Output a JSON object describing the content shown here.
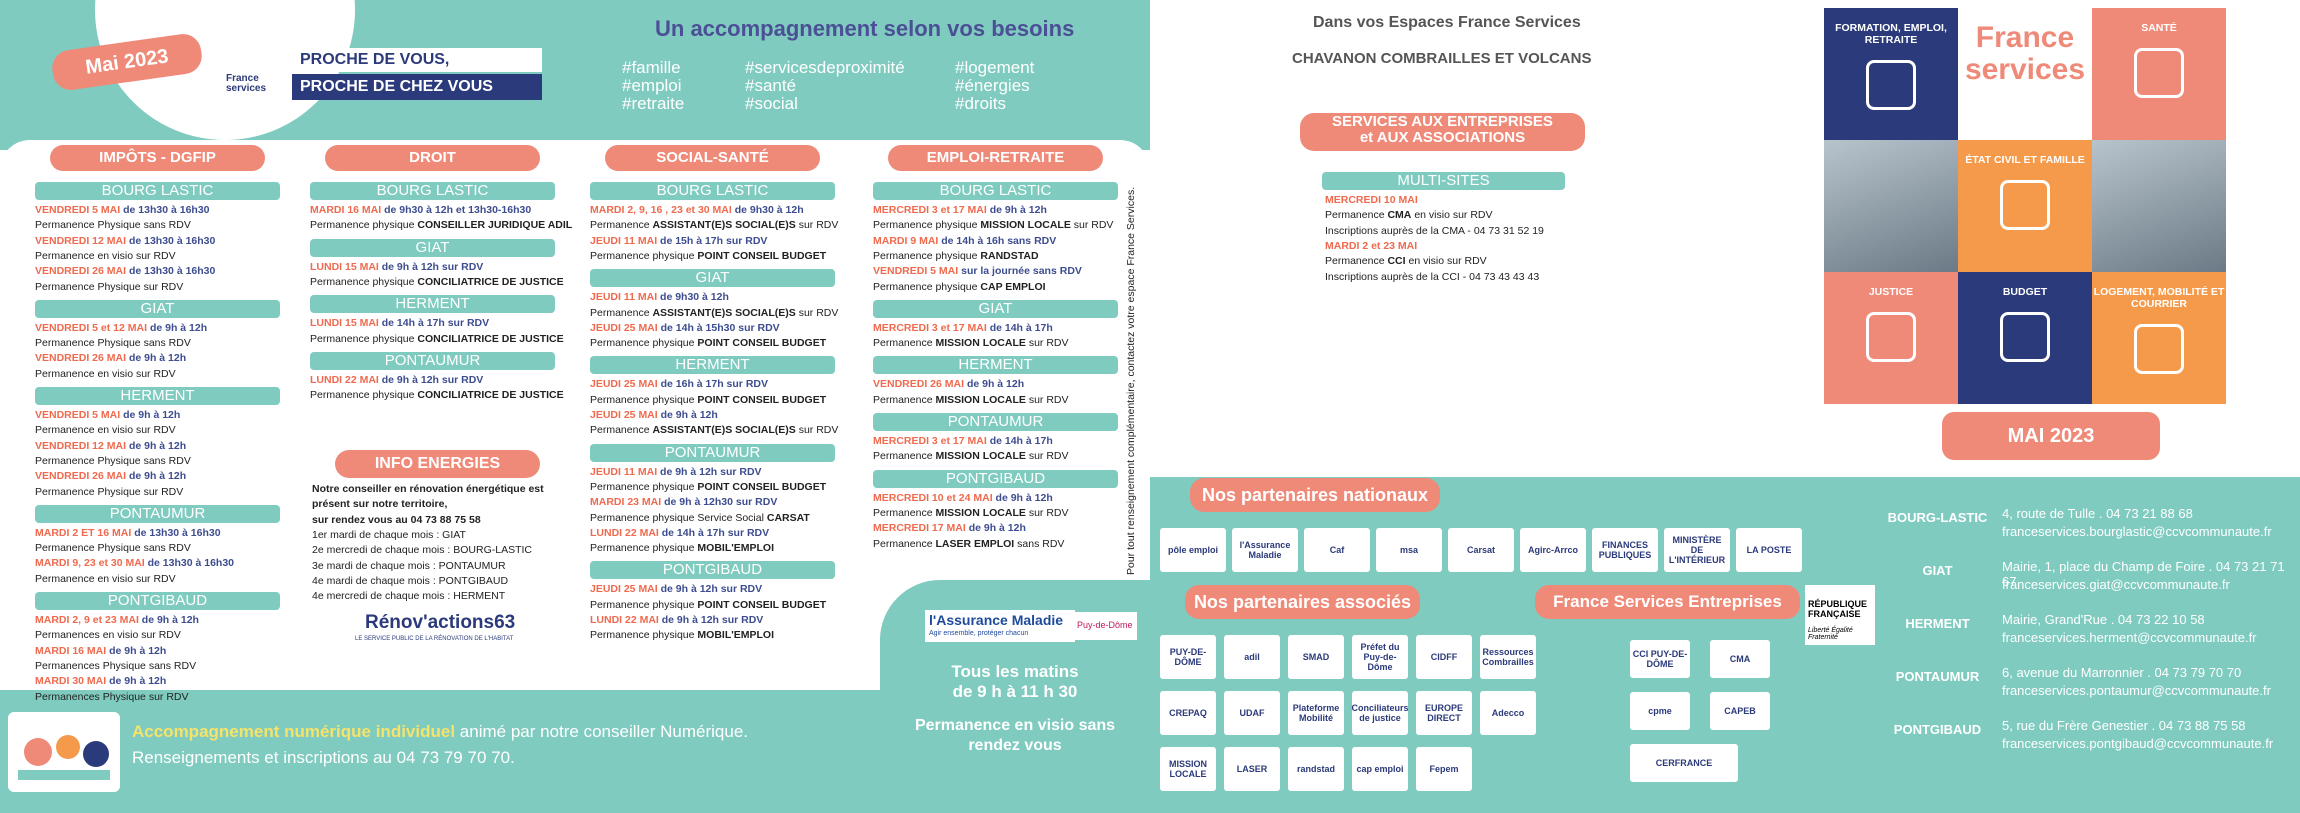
{
  "header": {
    "month_tab": "Mai 2023",
    "logo": "France services",
    "slogan": [
      "PROCHE DE VOUS,",
      "PROCHE DE CHEZ VOUS"
    ],
    "title": "Un accompagnement selon vos besoins",
    "hashtags": [
      [
        "#famille",
        "#emploi",
        "#retraite"
      ],
      [
        "#servicesdeproximité",
        "#santé",
        "#social"
      ],
      [
        "#logement",
        "#énergies",
        "#droits"
      ]
    ]
  },
  "columns": [
    {
      "title": "IMPÔTS - DGFIP",
      "sections": [
        {
          "place": "BOURG LASTIC",
          "lines": [
            {
              "day": "VENDREDI 5 MAI",
              "time": "de 13h30 à 16h30"
            },
            {
              "text": "Permanence Physique sans RDV"
            },
            {
              "day": "VENDREDI 12 MAI",
              "time": "de 13h30 à 16h30"
            },
            {
              "text": "Permanence en visio sur RDV"
            },
            {
              "day": "VENDREDI 26 MAI",
              "time": "de 13h30 à 16h30"
            },
            {
              "text": "Permanence Physique sur RDV"
            }
          ]
        },
        {
          "place": "GIAT",
          "lines": [
            {
              "day": "VENDREDI 5 et 12 MAI",
              "time": "de 9h à 12h"
            },
            {
              "text": "Permanence Physique sans RDV"
            },
            {
              "day": "VENDREDI 26 MAI",
              "time": "de 9h à 12h"
            },
            {
              "text": "Permanence en visio sur RDV"
            }
          ]
        },
        {
          "place": "HERMENT",
          "lines": [
            {
              "day": "VENDREDI 5 MAI",
              "time": "de 9h à 12h"
            },
            {
              "text": "Permanence en visio sur RDV"
            },
            {
              "day": "VENDREDI 12 MAI",
              "time": "de 9h à 12h"
            },
            {
              "text": "Permanence Physique sans RDV"
            },
            {
              "day": "VENDREDI 26 MAI",
              "time": "de 9h à 12h"
            },
            {
              "text": "Permanence Physique sur RDV"
            }
          ]
        },
        {
          "place": "PONTAUMUR",
          "lines": [
            {
              "day": "MARDI 2 ET 16 MAI",
              "time": "de 13h30 à 16h30"
            },
            {
              "text": "Permanence Physique sans RDV"
            },
            {
              "day": "MARDI 9, 23 et 30 MAI",
              "time": "de 13h30 à 16h30"
            },
            {
              "text": "Permanence en visio sur RDV"
            }
          ]
        },
        {
          "place": "PONTGIBAUD",
          "lines": [
            {
              "day": "MARDI 2, 9 et 23 MAI",
              "time": "de 9h à 12h"
            },
            {
              "text": "Permanences en visio sur RDV"
            },
            {
              "day": "MARDI 16 MAI",
              "time": "de 9h à 12h"
            },
            {
              "text": "Permanences Physique sans RDV"
            },
            {
              "day": "MARDI 30 MAI",
              "time": "de 9h à 12h"
            },
            {
              "text": "Permanences Physique sur RDV"
            }
          ]
        }
      ]
    },
    {
      "title": "DROIT",
      "sections": [
        {
          "place": "BOURG LASTIC",
          "lines": [
            {
              "day": "MARDI 16 MAI",
              "time": "de 9h30 à 12h et 13h30-16h30"
            },
            {
              "text": "Permanence physique",
              "bold": "CONSEILLER JURIDIQUE ADIL"
            }
          ]
        },
        {
          "place": "GIAT",
          "lines": [
            {
              "day": "LUNDI 15 MAI",
              "time": "de 9h à 12h sur RDV"
            },
            {
              "text": "Permanence physique",
              "bold": "CONCILIATRICE DE JUSTICE"
            }
          ]
        },
        {
          "place": "HERMENT",
          "lines": [
            {
              "day": "LUNDI 15 MAI",
              "time": "de 14h à 17h sur RDV"
            },
            {
              "text": "Permanence physique",
              "bold": "CONCILIATRICE DE JUSTICE"
            }
          ]
        },
        {
          "place": "PONTAUMUR",
          "lines": [
            {
              "day": "LUNDI 22 MAI",
              "time": "de 9h à 12h sur RDV"
            },
            {
              "text": "Permanence physique",
              "bold": "CONCILIATRICE DE JUSTICE"
            }
          ]
        }
      ]
    },
    {
      "title": "SOCIAL-SANTÉ",
      "sections": [
        {
          "place": "BOURG LASTIC",
          "lines": [
            {
              "day": "MARDI 2, 9, 16 , 23 et 30 MAI",
              "time": "de 9h30 à 12h"
            },
            {
              "text": "Permanence",
              "bold": "ASSISTANT(E)S SOCIAL(E)S",
              "after": "sur RDV"
            },
            {
              "day": "JEUDI 11 MAI",
              "time": "de 15h à 17h sur RDV"
            },
            {
              "text": "Permanence physique",
              "bold": "POINT CONSEIL BUDGET"
            }
          ]
        },
        {
          "place": "GIAT",
          "lines": [
            {
              "day": "JEUDI 11 MAI",
              "time": "de 9h30 à 12h"
            },
            {
              "text": "Permanence",
              "bold": "ASSISTANT(E)S SOCIAL(E)S",
              "after": "sur RDV"
            },
            {
              "day": "JEUDI 25 MAI",
              "time": "de 14h à 15h30 sur RDV"
            },
            {
              "text": "Permanence physique",
              "bold": "POINT CONSEIL BUDGET"
            }
          ]
        },
        {
          "place": "HERMENT",
          "lines": [
            {
              "day": "JEUDI 25 MAI",
              "time": "de 16h à 17h sur RDV"
            },
            {
              "text": "Permanence physique",
              "bold": "POINT CONSEIL BUDGET"
            },
            {
              "day": "JEUDI 25 MAI",
              "time": "de 9h à 12h"
            },
            {
              "text": "Permanence",
              "bold": "ASSISTANT(E)S SOCIAL(E)S",
              "after": "sur RDV"
            }
          ]
        },
        {
          "place": "PONTAUMUR",
          "lines": [
            {
              "day": "JEUDI 11 MAI",
              "time": "de 9h à 12h sur RDV"
            },
            {
              "text": "Permanence physique",
              "bold": "POINT CONSEIL BUDGET"
            },
            {
              "day": "MARDI 23 MAI",
              "time": "de 9h à 12h30 sur RDV"
            },
            {
              "text": "Permanence physique Service Social",
              "bold": "CARSAT"
            },
            {
              "day": "LUNDI 22 MAI",
              "time": "de 14h à 17h sur RDV"
            },
            {
              "text": "Permanence physique",
              "bold": "MOBIL'EMPLOI"
            }
          ]
        },
        {
          "place": "PONTGIBAUD",
          "lines": [
            {
              "day": "JEUDI 25 MAI",
              "time": "de 9h à 12h sur RDV"
            },
            {
              "text": "Permanence physique",
              "bold": "POINT CONSEIL BUDGET"
            },
            {
              "day": "LUNDI 22 MAI",
              "time": "de 9h à 12h sur RDV"
            },
            {
              "text": "Permanence physique",
              "bold": "MOBIL'EMPLOI"
            }
          ]
        }
      ]
    },
    {
      "title": "EMPLOI-RETRAITE",
      "sections": [
        {
          "place": "BOURG LASTIC",
          "lines": [
            {
              "day": "MERCREDI 3 et 17 MAI",
              "time": "de 9h à 12h"
            },
            {
              "text": "Permanence physique",
              "bold": "MISSION LOCALE",
              "after": "sur RDV"
            },
            {
              "day": "MARDI 9 MAI",
              "time": "de 14h à 16h sans RDV"
            },
            {
              "text": "Permanence physique",
              "bold": "RANDSTAD"
            },
            {
              "day": "VENDREDI 5 MAI",
              "time": "sur la journée sans RDV"
            },
            {
              "text": "Permanence physique",
              "bold": "CAP EMPLOI"
            }
          ]
        },
        {
          "place": "GIAT",
          "lines": [
            {
              "day": "MERCREDI 3 et 17 MAI",
              "time": "de 14h à 17h"
            },
            {
              "text": "Permanence",
              "bold": "MISSION LOCALE",
              "after": "sur RDV"
            }
          ]
        },
        {
          "place": "HERMENT",
          "lines": [
            {
              "day": "VENDREDI 26 MAI",
              "time": "de 9h à 12h"
            },
            {
              "text": "Permanence",
              "bold": "MISSION LOCALE",
              "after": "sur RDV"
            }
          ]
        },
        {
          "place": "PONTAUMUR",
          "lines": [
            {
              "day": "MERCREDI 3 et 17 MAI",
              "time": "de 14h à 17h"
            },
            {
              "text": "Permanence",
              "bold": "MISSION LOCALE",
              "after": "sur RDV"
            }
          ]
        },
        {
          "place": "PONTGIBAUD",
          "lines": [
            {
              "day": "MERCREDI 10 et 24 MAI",
              "time": "de 9h à 12h"
            },
            {
              "text": "Permanence",
              "bold": "MISSION LOCALE",
              "after": "sur RDV"
            },
            {
              "day": "MERCREDI 17 MAI",
              "time": "de 9h à 12h"
            },
            {
              "text": "Permanence",
              "bold": "LASER EMPLOI",
              "after": "sans RDV"
            }
          ]
        }
      ]
    }
  ],
  "info_energies": {
    "title": "INFO ENERGIES",
    "intro": [
      "Notre conseiller en rénovation énergétique est",
      "présent sur notre territoire,",
      "sur rendez vous au 04 73 88 75 58"
    ],
    "schedule": [
      "1er mardi de chaque mois : GIAT",
      "2e mercredi de chaque mois : BOURG-LASTIC",
      "3e mardi de chaque mois : PONTAUMUR",
      "4e mardi de chaque mois : PONTGIBAUD",
      "4e mercredi de chaque mois : HERMENT"
    ],
    "logo": "Rénov'actions63",
    "logo_tagline": "LE SERVICE PUBLIC DE LA RÉNOVATION DE L'HABITAT"
  },
  "side_note": "Pour tout renseignement complémentaire, contactez votre espace France Services.",
  "digital": {
    "bold": "Accompagnement numérique individuel",
    "text": "animé par notre conseiller Numérique.",
    "line2": "Renseignements et inscriptions au 04 73 79 70 70."
  },
  "assurance": {
    "logo": "l'Assurance Maladie",
    "tagline": "Agir ensemble, protéger chacun",
    "dept": "Puy-de-Dôme",
    "lines": [
      "Tous les matins",
      "de 9 h à 11 h 30"
    ],
    "note": [
      "Permanence en visio sans",
      "rendez vous"
    ]
  },
  "right": {
    "intro": "Dans vos Espaces France Services",
    "territory": "CHAVANON COMBRAILLES ET VOLCANS",
    "enterprise_tab": [
      "SERVICES AUX ENTREPRISES",
      "et AUX ASSOCIATIONS"
    ],
    "multi": {
      "place": "MULTI-SITES",
      "lines": [
        {
          "day": "MERCREDI 10 MAI"
        },
        {
          "text": "Permanence",
          "bold": "CMA",
          "after": "en visio sur RDV"
        },
        {
          "text": "Inscriptions auprès de la CMA - 04 73 31 52 19"
        },
        {
          "day": "MARDI 2 et 23 MAI"
        },
        {
          "text": "Permanence",
          "bold": "CCI",
          "after": "en visio sur RDV"
        },
        {
          "text": "Inscriptions auprès de la CCI - 04 73 43 43 43"
        }
      ]
    }
  },
  "cover": {
    "cells": [
      "FORMATION, EMPLOI, RETRAITE",
      "France services",
      "SANTÉ",
      "ÉTAT CIVIL ET FAMILLE",
      "JUSTICE",
      "BUDGET",
      "LOGEMENT, MOBILITÉ ET COURRIER"
    ],
    "month": "MAI 2023"
  },
  "partners": {
    "national_title": "Nos partenaires nationaux",
    "national": [
      "pôle emploi",
      "l'Assurance Maladie",
      "Caf",
      "msa",
      "Carsat",
      "Agirc-Arrco",
      "FINANCES PUBLIQUES",
      "MINISTÈRE DE L'INTÉRIEUR",
      "LA POSTE"
    ],
    "associated_title": "Nos partenaires associés",
    "associated": [
      "PUY-DE-DÔME",
      "adil",
      "SMAD",
      "Préfet du Puy-de-Dôme",
      "CIDFF",
      "Ressources Combrailles",
      "CREPAQ",
      "UDAF",
      "Plateforme Mobilité",
      "Conciliateurs de justice",
      "EUROPE DIRECT",
      "Adecco",
      "MISSION LOCALE",
      "LASER",
      "randstad",
      "cap emploi",
      "Fepem"
    ],
    "enterprise_title": "France Services Entreprises",
    "enterprise": [
      "CCI PUY-DE-DÔME",
      "CMA",
      "cpme",
      "CAPEB",
      "CERFRANCE"
    ],
    "republic": [
      "RÉPUBLIQUE FRANÇAISE",
      "Liberté Égalité Fraternité"
    ]
  },
  "contacts": [
    {
      "name": "BOURG-LASTIC",
      "address": "4, route de Tulle . 04 73 21 88 68",
      "email": "franceservices.bourglastic@ccvcommunaute.fr"
    },
    {
      "name": "GIAT",
      "address": "Mairie, 1, place du Champ de Foire . 04 73 21 71 67",
      "email": "franceservices.giat@ccvcommunaute.fr"
    },
    {
      "name": "HERMENT",
      "address": "Mairie, Grand'Rue . 04 73 22 10 58",
      "email": "franceservices.herment@ccvcommunaute.fr"
    },
    {
      "name": "PONTAUMUR",
      "address": "6, avenue du Marronnier . 04 73 79 70 70",
      "email": "franceservices.pontaumur@ccvcommunaute.fr"
    },
    {
      "name": "PONTGIBAUD",
      "address": "5, rue du Frère Genestier . 04 73 88 75 58",
      "email": "franceservices.pontgibaud@ccvcommunaute.fr"
    }
  ]
}
